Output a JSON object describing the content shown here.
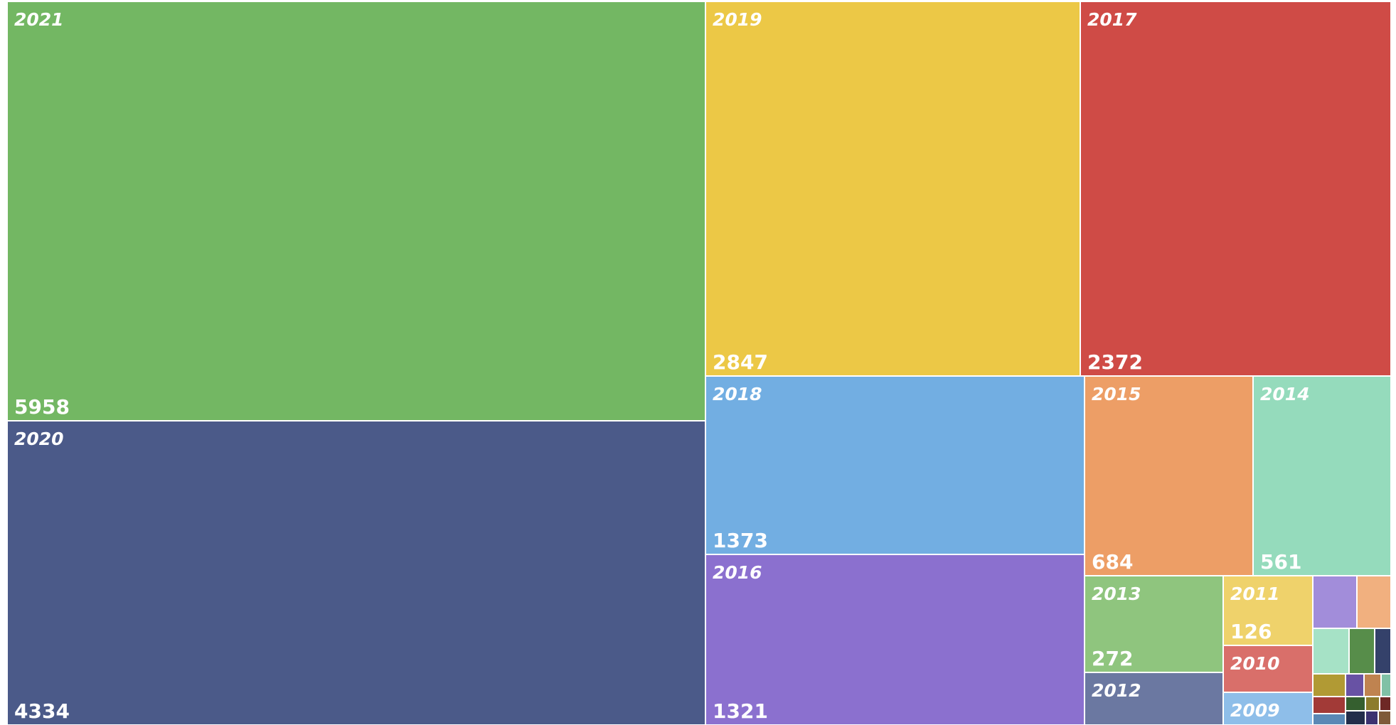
{
  "chart_data": {
    "type": "treemap",
    "title": "",
    "items": [
      {
        "name": "2021",
        "value": 5958,
        "color": "#73b763"
      },
      {
        "name": "2020",
        "value": 4334,
        "color": "#4b5a89"
      },
      {
        "name": "2019",
        "value": 2847,
        "color": "#ecc846"
      },
      {
        "name": "2017",
        "value": 2372,
        "color": "#cf4b46"
      },
      {
        "name": "2018",
        "value": 1373,
        "color": "#72aee2"
      },
      {
        "name": "2016",
        "value": 1321,
        "color": "#8b70cf"
      },
      {
        "name": "2015",
        "value": 684,
        "color": "#ed9e66"
      },
      {
        "name": "2014",
        "value": 561,
        "color": "#95dbbc"
      },
      {
        "name": "2013",
        "value": 272,
        "color": "#8fc57e"
      },
      {
        "name": "2012",
        "value": null,
        "color": "#6b78a1"
      },
      {
        "name": "2011",
        "value": 126,
        "color": "#efd26b"
      },
      {
        "name": "2010",
        "value": null,
        "color": "#d96f6a"
      },
      {
        "name": "2009",
        "value": null,
        "color": "#8ebee9"
      }
    ],
    "small_tiles": [
      {
        "color": "#a28dda"
      },
      {
        "color": "#f1b07f"
      },
      {
        "color": "#a6e2c6"
      },
      {
        "color": "#578d4a"
      },
      {
        "color": "#34416a"
      },
      {
        "color": "#b19a34"
      },
      {
        "color": "#6852a4"
      },
      {
        "color": "#bf8350"
      },
      {
        "color": "#80c1a6"
      },
      {
        "color": "#a23a37"
      },
      {
        "color": "#355f2f"
      },
      {
        "color": "#8c7c2c"
      },
      {
        "color": "#6e2825"
      },
      {
        "color": "#5a88b5"
      },
      {
        "color": "#232d4a"
      },
      {
        "color": "#3c3270"
      },
      {
        "color": "#7e5a39"
      }
    ]
  }
}
